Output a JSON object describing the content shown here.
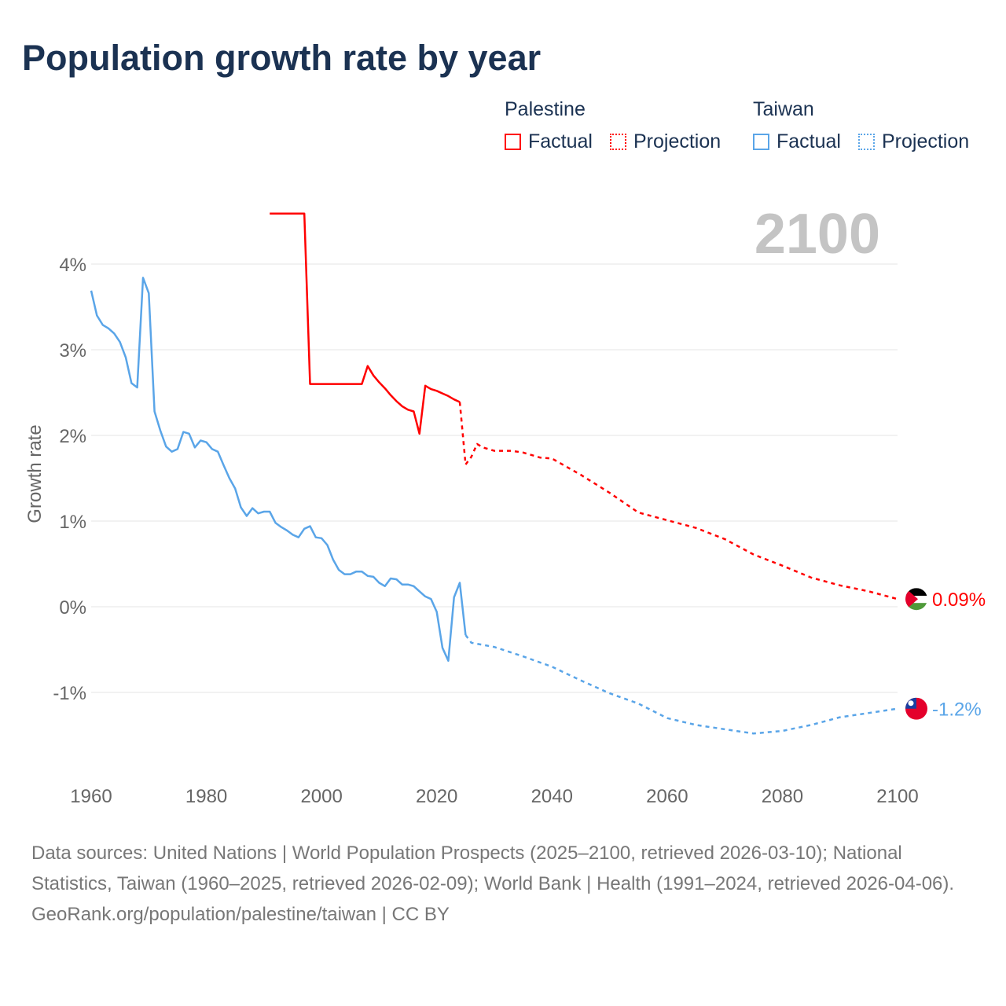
{
  "title": "Population growth rate by year",
  "legend": {
    "groups": [
      {
        "name": "Palestine",
        "factual": "Factual",
        "projection": "Projection",
        "color": "#ff0000"
      },
      {
        "name": "Taiwan",
        "factual": "Factual",
        "projection": "Projection",
        "color": "#5aa5e8"
      }
    ]
  },
  "year_label": "2100",
  "footer": {
    "sources": "Data sources: United Nations | World Population Prospects (2025–2100, retrieved 2026-03-10); National Statistics, Taiwan (1960–2025, retrieved 2026-02-09); World Bank | Health (1991–2024, retrieved 2026-04-06).",
    "credit": "GeoRank.org/population/palestine/taiwan | CC BY"
  },
  "chart_data": {
    "type": "line",
    "title": "Population growth rate by year",
    "ylabel": "Growth rate",
    "xlabel": "",
    "xlim": [
      1960,
      2100
    ],
    "ylim": [
      -2,
      4.6
    ],
    "xticks": [
      1960,
      1980,
      2000,
      2020,
      2040,
      2060,
      2080,
      2100
    ],
    "xtick_labels": [
      "1960",
      "1980",
      "2000",
      "2020",
      "2040",
      "2060",
      "2080",
      "2100"
    ],
    "yticks": [
      -1,
      0,
      1,
      2,
      3,
      4
    ],
    "ytick_labels": [
      "-1%",
      "0%",
      "1%",
      "2%",
      "3%",
      "4%"
    ],
    "grid": true,
    "legend_position": "top-right",
    "series": [
      {
        "name": "Palestine",
        "kind": "factual",
        "color": "#ff0000",
        "x": [
          1991,
          1992,
          1993,
          1994,
          1995,
          1996,
          1997,
          1998,
          1999,
          2000,
          2001,
          2002,
          2003,
          2004,
          2005,
          2006,
          2007,
          2008,
          2009,
          2010,
          2011,
          2012,
          2013,
          2014,
          2015,
          2016,
          2017,
          2018,
          2019,
          2020,
          2021,
          2022,
          2023,
          2024
        ],
        "y": [
          4.59,
          4.59,
          4.59,
          4.59,
          4.59,
          4.59,
          4.59,
          2.6,
          2.6,
          2.6,
          2.6,
          2.6,
          2.6,
          2.6,
          2.6,
          2.6,
          2.6,
          2.81,
          2.7,
          2.62,
          2.55,
          2.47,
          2.4,
          2.34,
          2.3,
          2.28,
          2.02,
          2.58,
          2.54,
          2.52,
          2.49,
          2.46,
          2.42,
          2.39
        ]
      },
      {
        "name": "Palestine",
        "kind": "projection",
        "color": "#ff0000",
        "x": [
          2024,
          2025,
          2026,
          2027,
          2028,
          2030,
          2033,
          2035,
          2038,
          2040,
          2045,
          2050,
          2055,
          2060,
          2065,
          2070,
          2075,
          2080,
          2085,
          2090,
          2095,
          2100
        ],
        "y": [
          2.39,
          1.66,
          1.75,
          1.9,
          1.86,
          1.82,
          1.82,
          1.8,
          1.74,
          1.73,
          1.54,
          1.33,
          1.1,
          1.01,
          0.92,
          0.79,
          0.61,
          0.48,
          0.34,
          0.25,
          0.18,
          0.09
        ]
      },
      {
        "name": "Taiwan",
        "kind": "factual",
        "color": "#5aa5e8",
        "x": [
          1960,
          1961,
          1962,
          1963,
          1964,
          1965,
          1966,
          1967,
          1968,
          1969,
          1970,
          1971,
          1972,
          1973,
          1974,
          1975,
          1976,
          1977,
          1978,
          1979,
          1980,
          1981,
          1982,
          1983,
          1984,
          1985,
          1986,
          1987,
          1988,
          1989,
          1990,
          1991,
          1992,
          1993,
          1994,
          1995,
          1996,
          1997,
          1998,
          1999,
          2000,
          2001,
          2002,
          2003,
          2004,
          2005,
          2006,
          2007,
          2008,
          2009,
          2010,
          2011,
          2012,
          2013,
          2014,
          2015,
          2016,
          2017,
          2018,
          2019,
          2020,
          2021,
          2022,
          2023,
          2024,
          2025
        ],
        "y": [
          3.69,
          3.4,
          3.29,
          3.25,
          3.19,
          3.09,
          2.91,
          2.61,
          2.56,
          3.84,
          3.66,
          2.28,
          2.06,
          1.87,
          1.81,
          1.84,
          2.04,
          2.02,
          1.86,
          1.94,
          1.92,
          1.84,
          1.81,
          1.65,
          1.5,
          1.38,
          1.16,
          1.06,
          1.15,
          1.09,
          1.11,
          1.11,
          0.98,
          0.93,
          0.89,
          0.84,
          0.81,
          0.91,
          0.94,
          0.81,
          0.8,
          0.72,
          0.55,
          0.43,
          0.38,
          0.38,
          0.41,
          0.41,
          0.36,
          0.35,
          0.28,
          0.24,
          0.33,
          0.32,
          0.26,
          0.26,
          0.24,
          0.18,
          0.12,
          0.09,
          -0.06,
          -0.48,
          -0.63,
          0.11,
          0.28,
          -0.33
        ]
      },
      {
        "name": "Taiwan",
        "kind": "projection",
        "color": "#5aa5e8",
        "x": [
          2025,
          2026,
          2030,
          2035,
          2040,
          2045,
          2050,
          2055,
          2060,
          2065,
          2070,
          2075,
          2080,
          2085,
          2090,
          2095,
          2100
        ],
        "y": [
          -0.33,
          -0.42,
          -0.47,
          -0.58,
          -0.7,
          -0.86,
          -1.01,
          -1.13,
          -1.3,
          -1.38,
          -1.43,
          -1.48,
          -1.45,
          -1.38,
          -1.29,
          -1.24,
          -1.19
        ]
      }
    ],
    "end_labels": [
      {
        "series": "Palestine",
        "text": "0.09%",
        "value": 0.09,
        "color": "#ff0000"
      },
      {
        "series": "Taiwan",
        "text": "-1.2%",
        "value": -1.19,
        "color": "#5aa5e8"
      }
    ]
  }
}
